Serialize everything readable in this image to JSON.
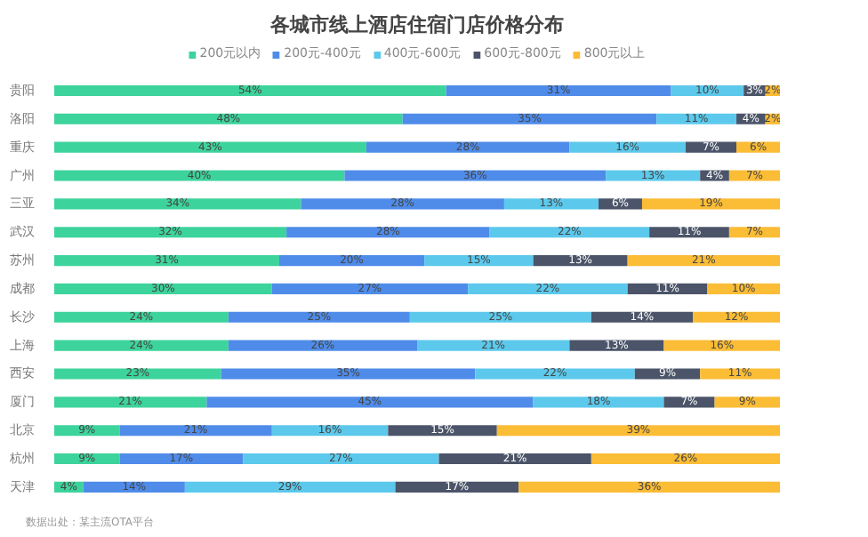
{
  "chart_data": {
    "type": "bar",
    "orientation": "horizontal",
    "stacked": true,
    "title": "各城市线上酒店住宿门店价格分布",
    "legend": "top",
    "grid": false,
    "tick_labels": "y",
    "categories": [
      "贵阳",
      "洛阳",
      "重庆",
      "广州",
      "三亚",
      "武汉",
      "苏州",
      "成都",
      "长沙",
      "上海",
      "西安",
      "厦门",
      "北京",
      "杭州",
      "天津"
    ],
    "series": [
      {
        "name": "200元以内",
        "color": "#3dd39c",
        "values": [
          54,
          48,
          43,
          40,
          34,
          32,
          31,
          30,
          24,
          24,
          23,
          21,
          9,
          9,
          4
        ],
        "value_labels": [
          "54%",
          "48%",
          "43%",
          "40%",
          "34%",
          "32%",
          "31%",
          "30%",
          "24%",
          "24%",
          "23%",
          "21%",
          "9%",
          "9%",
          "4%"
        ]
      },
      {
        "name": "200元-400元",
        "color": "#4f8cea",
        "values": [
          31,
          35,
          28,
          36,
          28,
          28,
          20,
          27,
          25,
          26,
          35,
          45,
          21,
          17,
          14
        ],
        "value_labels": [
          "31%",
          "35%",
          "28%",
          "36%",
          "28%",
          "28%",
          "20%",
          "27%",
          "25%",
          "26%",
          "35%",
          "45%",
          "21%",
          "17%",
          "14%"
        ]
      },
      {
        "name": "400元-600元",
        "color": "#5cc9ec",
        "values": [
          10,
          11,
          16,
          13,
          13,
          22,
          15,
          22,
          25,
          21,
          22,
          18,
          16,
          27,
          29
        ],
        "value_labels": [
          "10%",
          "11%",
          "16%",
          "13%",
          "13%",
          "22%",
          "15%",
          "22%",
          "25%",
          "21%",
          "22%",
          "18%",
          "16%",
          "27%",
          "29%"
        ]
      },
      {
        "name": "600元-800元",
        "color": "#4b5468",
        "values": [
          3,
          4,
          7,
          4,
          6,
          11,
          13,
          11,
          14,
          13,
          9,
          7,
          15,
          21,
          17
        ],
        "value_labels": [
          "3%",
          "4%",
          "7%",
          "4%",
          "6%",
          "11%",
          "13%",
          "11%",
          "14%",
          "13%",
          "9%",
          "7%",
          "15%",
          "21%",
          "17%"
        ]
      },
      {
        "name": "800元以上",
        "color": "#fbbc36",
        "values": [
          2,
          2,
          6,
          7,
          19,
          7,
          21,
          10,
          12,
          16,
          11,
          9,
          39,
          26,
          36
        ],
        "value_labels": [
          "2%",
          "2%",
          "6%",
          "7%",
          "19%",
          "7%",
          "21%",
          "10%",
          "12%",
          "16%",
          "11%",
          "9%",
          "39%",
          "26%",
          "36%"
        ]
      }
    ],
    "annotations": [
      "数据出处：某主流OTA平台"
    ]
  }
}
